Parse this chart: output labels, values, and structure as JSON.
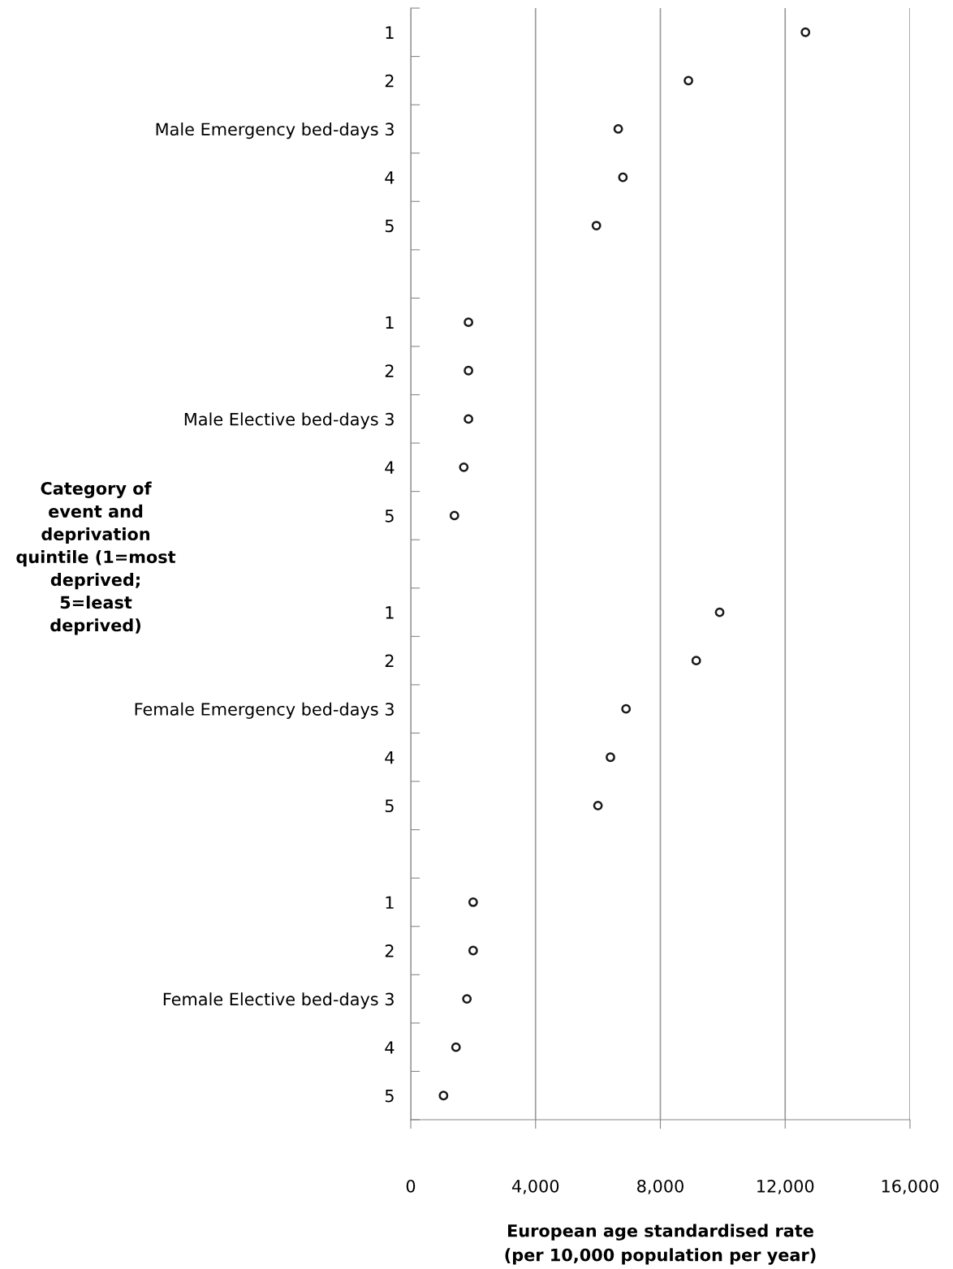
{
  "chart_data": {
    "type": "scatter",
    "orientation": "horizontal",
    "categories": [
      "1",
      "2",
      "Male Emergency bed-days 3",
      "4",
      "5",
      null,
      "1",
      "2",
      "Male Elective bed-days 3",
      "4",
      "5",
      null,
      "1",
      "2",
      "Female Emergency bed-days 3",
      "4",
      "5",
      null,
      "1",
      "2",
      "Female Elective bed-days 3",
      "4",
      "5"
    ],
    "values": [
      12650,
      8900,
      6650,
      6800,
      5950,
      null,
      1850,
      1850,
      1850,
      1700,
      1400,
      null,
      9900,
      9150,
      6900,
      6400,
      6000,
      null,
      2000,
      2000,
      1800,
      1450,
      1050
    ],
    "color": "#1a1a1a",
    "marker": "circle",
    "grid": "x",
    "xlim": [
      0,
      16000
    ],
    "xticks": [
      0,
      {
        "value": 4000,
        "label": "4,000"
      },
      {
        "value": 8000,
        "label": "8,000"
      },
      {
        "value": 12000,
        "label": "12,000"
      },
      {
        "value": 16000,
        "label": "16,000"
      }
    ],
    "xlabel": "European age standardised rate\n(per 10,000 population per year)",
    "ylabel": "Category of\nevent and\ndeprivation\nquintile (1=most\ndeprived;\n5=least\ndeprived)"
  }
}
